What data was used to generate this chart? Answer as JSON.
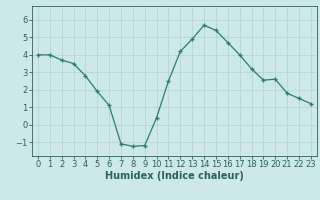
{
  "x": [
    0,
    1,
    2,
    3,
    4,
    5,
    6,
    7,
    8,
    9,
    10,
    11,
    12,
    13,
    14,
    15,
    16,
    17,
    18,
    19,
    20,
    21,
    22,
    23
  ],
  "y": [
    4.0,
    4.0,
    3.7,
    3.5,
    2.8,
    1.9,
    1.1,
    -1.1,
    -1.25,
    -1.2,
    0.4,
    2.5,
    4.2,
    4.9,
    5.7,
    5.4,
    4.7,
    4.0,
    3.2,
    2.55,
    2.6,
    1.8,
    1.5,
    1.2
  ],
  "line_color": "#2e7d6e",
  "bg_color": "#cce8e8",
  "grid_color": "#b8d4d4",
  "xlabel": "Humidex (Indice chaleur)",
  "xlim": [
    -0.5,
    23.5
  ],
  "ylim": [
    -1.8,
    6.8
  ],
  "yticks": [
    -1,
    0,
    1,
    2,
    3,
    4,
    5,
    6
  ],
  "xticks": [
    0,
    1,
    2,
    3,
    4,
    5,
    6,
    7,
    8,
    9,
    10,
    11,
    12,
    13,
    14,
    15,
    16,
    17,
    18,
    19,
    20,
    21,
    22,
    23
  ],
  "tick_color": "#2e6060",
  "label_fontsize": 7,
  "tick_fontsize": 6
}
